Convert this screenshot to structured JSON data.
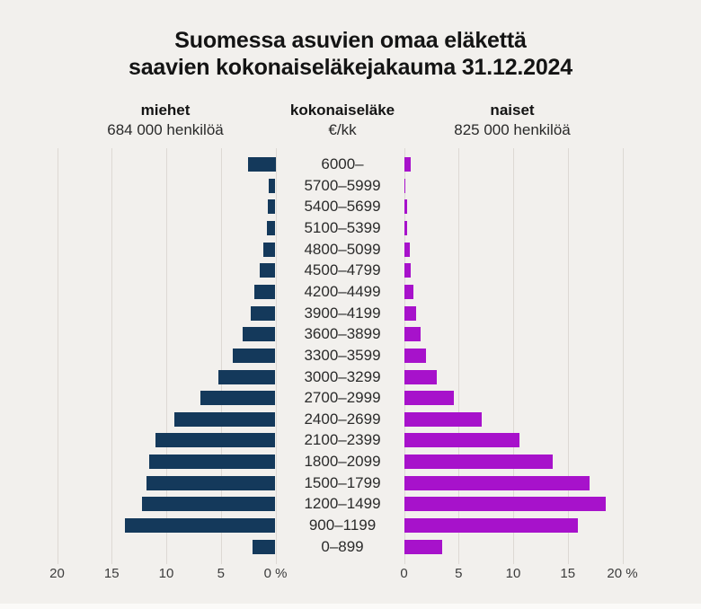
{
  "title": {
    "line1": "Suomessa asuvien omaa eläkettä",
    "line2": "saavien kokonaiseläkejakauma 31.12.2024"
  },
  "headers": {
    "left": {
      "label": "miehet",
      "sub": "684 000 henkilöä"
    },
    "center": {
      "label": "kokonaiseläke",
      "sub": "€/kk"
    },
    "right": {
      "label": "naiset",
      "sub": "825 000 henkilöä"
    }
  },
  "colors": {
    "men_bar": "#14395B",
    "women_bar": "#A712CB",
    "background": "#F2F0ED",
    "gridline": "#DDD9D4",
    "text": "#141414",
    "axis_text": "#3C3C3C"
  },
  "chart_data": {
    "type": "bar",
    "subtype": "population-pyramid",
    "unit": "%",
    "grid": true,
    "axis_max": 20,
    "categories": [
      "6000–",
      "5700–5999",
      "5400–5699",
      "5100–5399",
      "4800–5099",
      "4500–4799",
      "4200–4499",
      "3900–4199",
      "3600–3899",
      "3300–3599",
      "3000–3299",
      "2700–2999",
      "2400–2699",
      "2100–2399",
      "1800–2099",
      "1500–1799",
      "1200–1499",
      "900–1199",
      "0–899"
    ],
    "series": [
      {
        "name": "miehet",
        "side": "left",
        "total_label": "684 000 henkilöä",
        "values": [
          2.5,
          0.6,
          0.7,
          0.8,
          1.1,
          1.4,
          1.9,
          2.3,
          3.0,
          3.9,
          5.2,
          6.9,
          9.3,
          11.0,
          11.6,
          11.8,
          12.2,
          13.8,
          2.1
        ]
      },
      {
        "name": "naiset",
        "side": "right",
        "total_label": "825 000 henkilöä",
        "values": [
          0.6,
          0.1,
          0.25,
          0.3,
          0.5,
          0.6,
          0.85,
          1.1,
          1.5,
          2.0,
          3.0,
          4.6,
          7.1,
          10.6,
          13.6,
          17.0,
          18.5,
          15.9,
          3.5
        ]
      }
    ],
    "axis_ticks": {
      "left_values": [
        20,
        15,
        10,
        5,
        0
      ],
      "left_labels": [
        "20",
        "15",
        "10",
        "5",
        "0 %"
      ],
      "right_values": [
        0,
        5,
        10,
        15,
        20
      ],
      "right_labels": [
        "0",
        "5",
        "10",
        "15",
        "20 %"
      ]
    }
  }
}
